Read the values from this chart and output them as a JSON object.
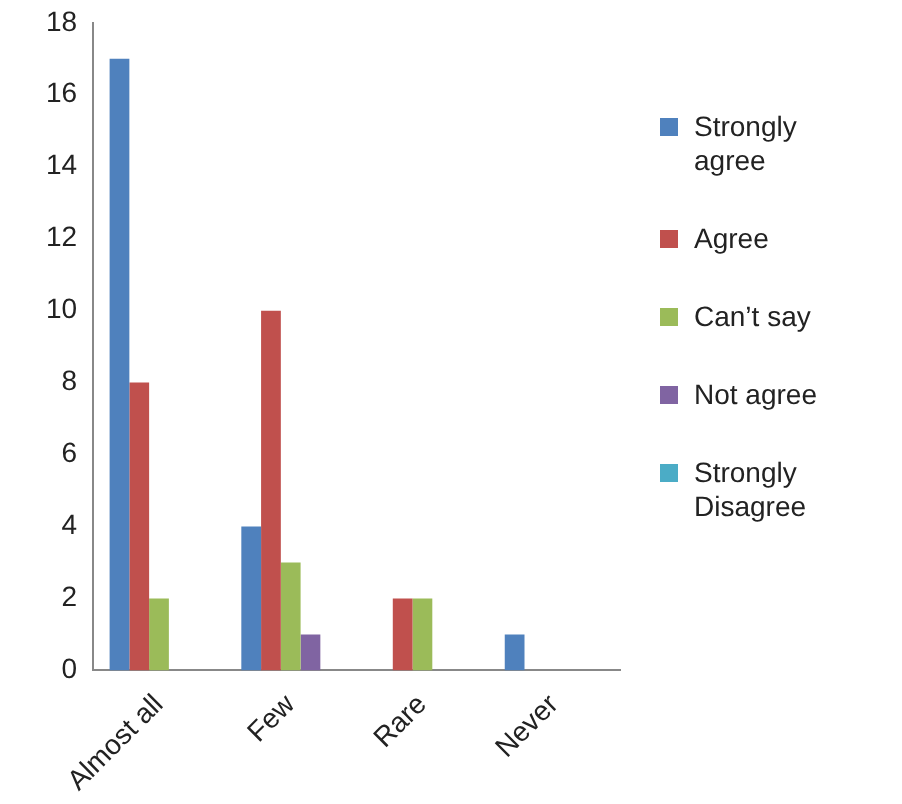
{
  "chart_data": {
    "type": "bar",
    "categories": [
      "Almost all",
      "Few",
      "Rare",
      "Never"
    ],
    "series": [
      {
        "name": "Strongly agree",
        "color": "#4f81bd",
        "values": [
          17,
          4,
          0,
          1
        ]
      },
      {
        "name": "Agree",
        "color": "#c0504d",
        "values": [
          8,
          10,
          2,
          0
        ]
      },
      {
        "name": "Can’t say",
        "color": "#9bbb59",
        "values": [
          2,
          3,
          2,
          0
        ]
      },
      {
        "name": "Not agree",
        "color": "#8064a2",
        "values": [
          0,
          1,
          0,
          0
        ]
      },
      {
        "name": "Strongly Disagree",
        "color": "#4bacc6",
        "values": [
          0,
          0,
          0,
          0
        ]
      }
    ],
    "ylim": [
      0,
      18
    ],
    "yticks": [
      0,
      2,
      4,
      6,
      8,
      10,
      12,
      14,
      16,
      18
    ],
    "grid": false,
    "legend": "right"
  }
}
